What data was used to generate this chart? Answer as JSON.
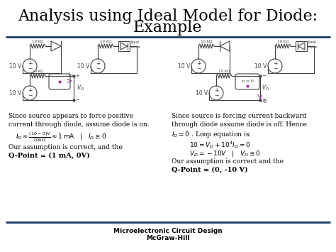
{
  "title_line1": "Analysis using Ideal Model for Diode:",
  "title_line2": "Example",
  "title_fontsize": 16,
  "title_color": "#000000",
  "bg_color": "#ffffff",
  "separator_color": "#1F3864",
  "separator_linewidth": 2.0,
  "footer_line1": "Microelectronic Circuit Design",
  "footer_line2": "McGraw-Hill",
  "footer_fontsize": 6.5,
  "lc": "#404040",
  "lw": 0.8
}
